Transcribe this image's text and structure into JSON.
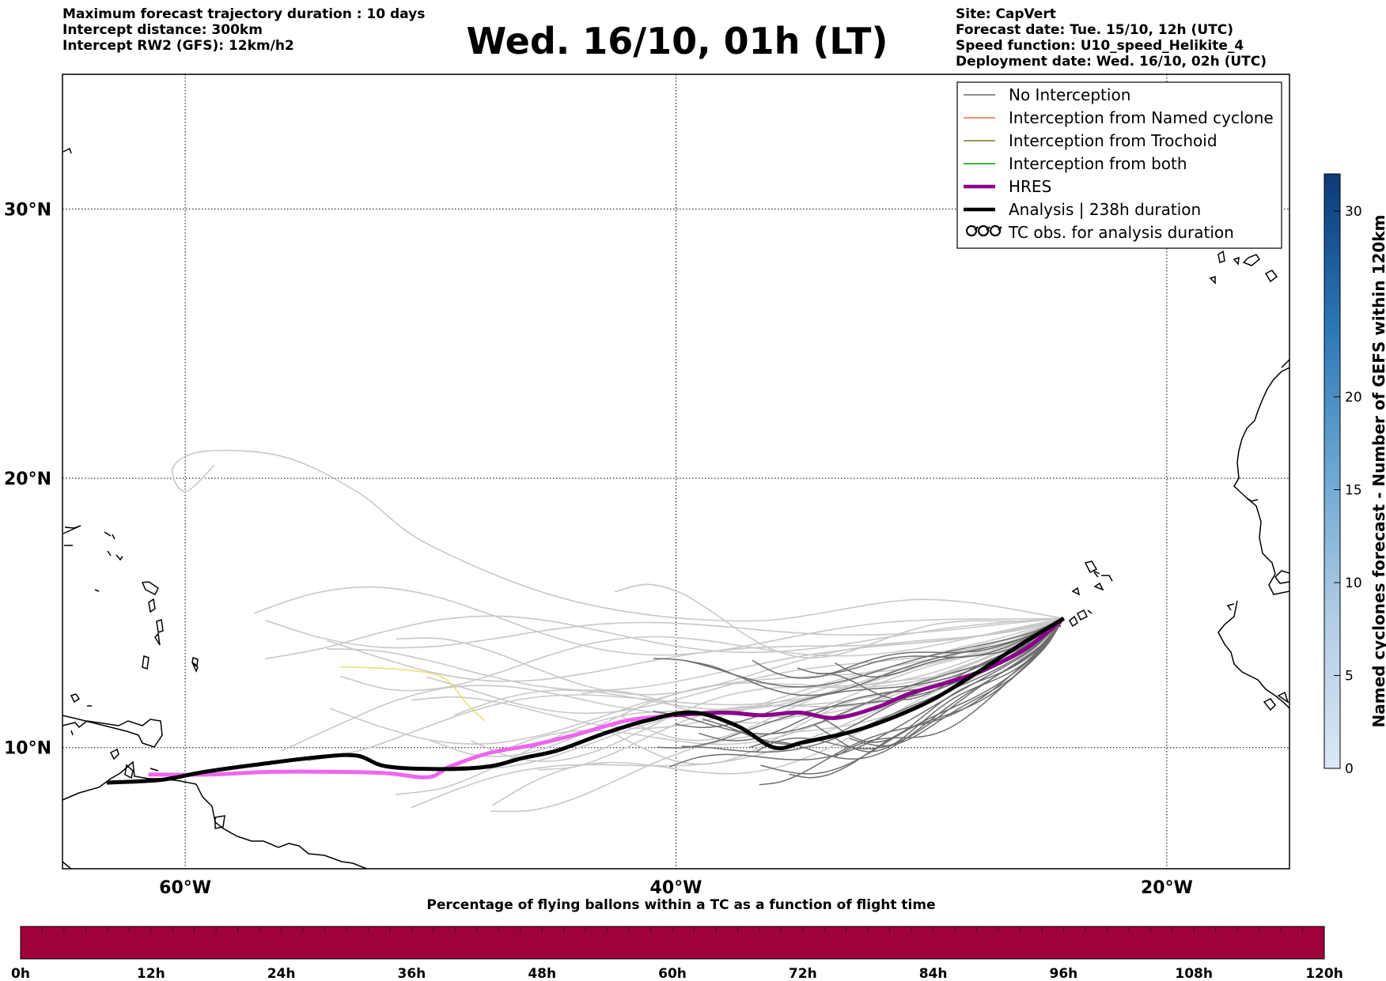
{
  "header": {
    "left_lines": [
      "Maximum forecast trajectory duration : 10 days",
      "Intercept distance: 300km",
      "Intercept RW2 (GFS):  12km/h2"
    ],
    "title": "Wed. 16/10, 01h (LT)",
    "right_lines": [
      "Site: CapVert",
      "Forecast date: Tue. 15/10, 12h (UTC)",
      "Speed function: U10_speed_Helikite_4",
      "Deployment date: Wed. 16/10, 02h (UTC)"
    ]
  },
  "map": {
    "lon_range": [
      -65,
      -15
    ],
    "lat_range": [
      5.5,
      35
    ],
    "lat_ticks": [
      {
        "value": 30,
        "label": "30°N"
      },
      {
        "value": 20,
        "label": "20°N"
      },
      {
        "value": 10,
        "label": "10°N"
      }
    ],
    "lon_ticks": [
      {
        "value": -60,
        "label": "60°W"
      },
      {
        "value": -40,
        "label": "40°W"
      },
      {
        "value": -20,
        "label": "20°W"
      }
    ],
    "grid": "dotted"
  },
  "legend": {
    "placement": "top-right",
    "items": [
      {
        "label": "No Interception",
        "color": "#808080",
        "style": "thin"
      },
      {
        "label": "Interception from Named cyclone",
        "color": "#ff7f50",
        "style": "thin"
      },
      {
        "label": "Interception from Trochoid",
        "color": "#8b8b3a",
        "style": "thin"
      },
      {
        "label": "Interception from both",
        "color": "#2ca02c",
        "style": "thin"
      },
      {
        "label": "HRES",
        "color": "#8b008b",
        "style": "thick"
      },
      {
        "label": "Analysis | 238h duration",
        "color": "#000000",
        "style": "thick"
      },
      {
        "label": "TC obs. for analysis duration",
        "color": "#000000",
        "style": "cyclone-icon"
      }
    ]
  },
  "colorbar_right": {
    "label": "Named cyclones forecast - Number of GEFS within 120km",
    "range": [
      0,
      32
    ],
    "ticks": [
      0,
      5,
      10,
      15,
      20,
      30
    ]
  },
  "colorbar_bottom": {
    "title": "Percentage of flying ballons within a TC as a function of flight time",
    "ticks": [
      "0h",
      "12h",
      "24h",
      "36h",
      "48h",
      "60h",
      "72h",
      "84h",
      "96h",
      "108h",
      "120h"
    ],
    "fill_color": "#a0003c"
  },
  "chart_data": {
    "type": "map-trajectories",
    "origin": [
      -24.2,
      14.8
    ],
    "analysis_track": [
      [
        -63.2,
        8.7
      ],
      [
        -61.0,
        8.8
      ],
      [
        -59.2,
        9.1
      ],
      [
        -56.8,
        9.4
      ],
      [
        -54.5,
        9.65
      ],
      [
        -53.0,
        9.7
      ],
      [
        -51.8,
        9.3
      ],
      [
        -49.5,
        9.2
      ],
      [
        -47.6,
        9.3
      ],
      [
        -46.3,
        9.6
      ],
      [
        -44.8,
        9.9
      ],
      [
        -43.0,
        10.5
      ],
      [
        -41.2,
        11.0
      ],
      [
        -39.3,
        11.3
      ],
      [
        -37.5,
        10.8
      ],
      [
        -36.0,
        10.0
      ],
      [
        -34.8,
        10.2
      ],
      [
        -32.8,
        10.6
      ],
      [
        -31.2,
        11.1
      ],
      [
        -29.5,
        11.8
      ],
      [
        -27.7,
        12.8
      ],
      [
        -26.0,
        13.8
      ],
      [
        -24.2,
        14.8
      ]
    ],
    "hres_track": [
      [
        -61.5,
        9.0
      ],
      [
        -59.0,
        9.0
      ],
      [
        -56.5,
        9.1
      ],
      [
        -54.0,
        9.1
      ],
      [
        -51.8,
        9.05
      ],
      [
        -50.1,
        8.9
      ],
      [
        -49.2,
        9.3
      ],
      [
        -47.6,
        9.8
      ],
      [
        -45.8,
        10.1
      ],
      [
        -44.0,
        10.5
      ],
      [
        -42.0,
        11.0
      ],
      [
        -40.1,
        11.2
      ],
      [
        -38.0,
        11.3
      ],
      [
        -36.5,
        11.2
      ],
      [
        -35.0,
        11.3
      ],
      [
        -33.5,
        11.1
      ],
      [
        -31.8,
        11.5
      ],
      [
        -30.5,
        12.0
      ],
      [
        -29.0,
        12.4
      ],
      [
        -27.4,
        12.9
      ],
      [
        -25.7,
        13.7
      ],
      [
        -24.2,
        14.8
      ]
    ],
    "trochoid_track": [
      [
        -53.7,
        13.0
      ],
      [
        -51.2,
        12.9
      ],
      [
        -49.5,
        12.6
      ],
      [
        -48.5,
        11.6
      ],
      [
        -47.8,
        11.0
      ]
    ]
  }
}
